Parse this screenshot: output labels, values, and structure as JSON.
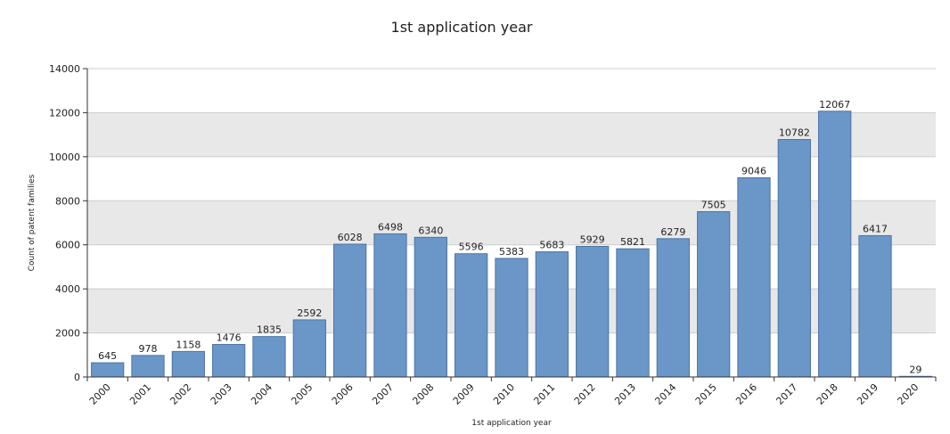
{
  "chart_data": {
    "type": "bar",
    "title": "1st application year",
    "xlabel": "1st application year",
    "ylabel": "Count of patent families",
    "categories": [
      "2000",
      "2001",
      "2002",
      "2003",
      "2004",
      "2005",
      "2006",
      "2007",
      "2008",
      "2009",
      "2010",
      "2011",
      "2012",
      "2013",
      "2014",
      "2015",
      "2016",
      "2017",
      "2018",
      "2019",
      "2020"
    ],
    "values": [
      645,
      978,
      1158,
      1476,
      1835,
      2592,
      6028,
      6498,
      6340,
      5596,
      5383,
      5683,
      5929,
      5821,
      6279,
      7505,
      9046,
      10782,
      12067,
      6417,
      29
    ],
    "ylim": [
      0,
      14000
    ],
    "yticks": [
      0,
      2000,
      4000,
      6000,
      8000,
      10000,
      12000,
      14000
    ],
    "grid": "horizontal bands",
    "legend": "none",
    "colors": {
      "bar_fill": "#6a97c8",
      "bar_stroke": "#4a74a6",
      "band_shade": "#e8e8e8",
      "gridline": "#cccccc",
      "axis": "#333333"
    }
  }
}
